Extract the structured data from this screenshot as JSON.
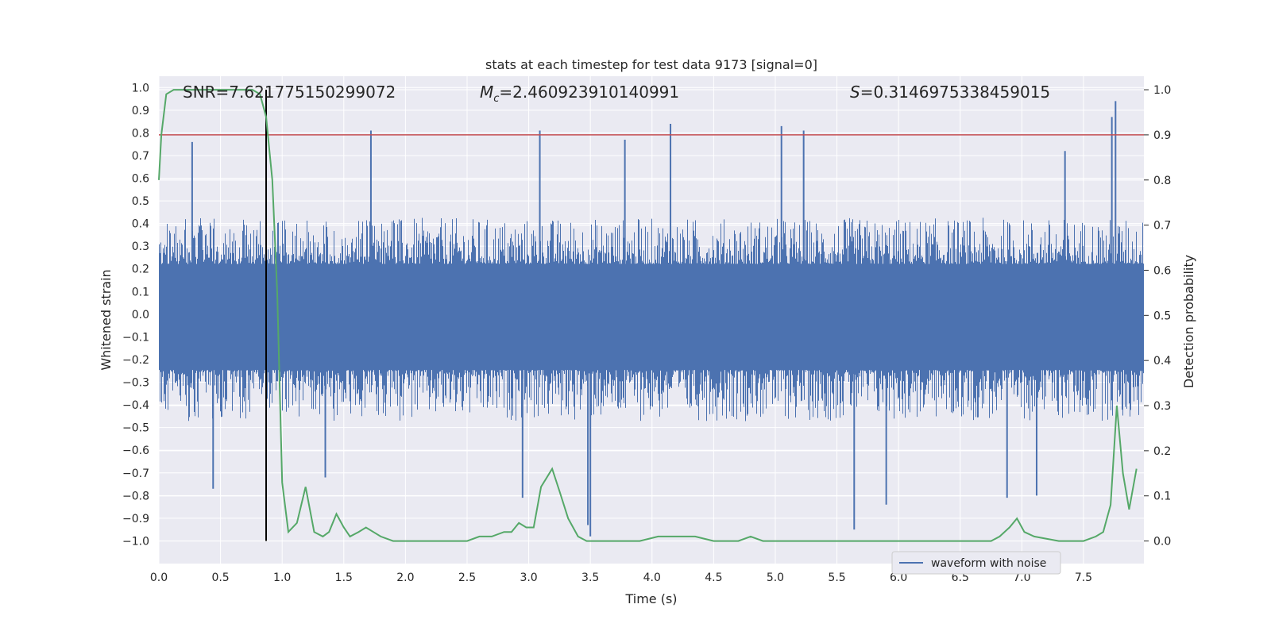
{
  "chart_data": {
    "type": "line",
    "title": "stats at each timestep for test data 9173 [signal=0]",
    "xlabel": "Time (s)",
    "ylabel": "Whitened strain",
    "y2label": "Detection probability",
    "xlim": [
      0,
      7.99
    ],
    "ylim": [
      -1.1,
      1.05
    ],
    "y2lim": [
      -0.05,
      1.03
    ],
    "xticks": [
      "0.0",
      "0.5",
      "1.0",
      "1.5",
      "2.0",
      "2.5",
      "3.0",
      "3.5",
      "4.0",
      "4.5",
      "5.0",
      "5.5",
      "6.0",
      "6.5",
      "7.0",
      "7.5"
    ],
    "yticks": [
      "1.0",
      "0.9",
      "0.8",
      "0.7",
      "0.6",
      "0.5",
      "0.4",
      "0.3",
      "0.2",
      "0.1",
      "0.0",
      "−0.1",
      "−0.2",
      "−0.3",
      "−0.4",
      "−0.5",
      "−0.6",
      "−0.7",
      "−0.8",
      "−0.9",
      "−1.0"
    ],
    "y2ticks": [
      "1.0",
      "0.9",
      "0.8",
      "0.7",
      "0.6",
      "0.5",
      "0.4",
      "0.3",
      "0.2",
      "0.1",
      "0.0"
    ],
    "annotations": {
      "snr": "SNR=7.621775150299072",
      "mc_symbol": "M",
      "mc_sub": "c",
      "mc_value": "=2.460923910140991",
      "s_symbol": "S",
      "s_value": "=0.3146975338459015"
    },
    "threshold_y2": 0.9,
    "marker_x": 0.87,
    "legend": "waveform with noise",
    "grid": true,
    "legend_position": "lower-right",
    "colors": {
      "background": "#eaeaf2",
      "grid": "#ffffff",
      "waveform": "#4c72b0",
      "probability": "#55a868",
      "threshold": "#c44e52",
      "marker": "#000000"
    },
    "waveform_envelope": {
      "upper_typical": 0.37,
      "lower_typical": -0.41,
      "peaks": [
        {
          "x": 0.27,
          "y": 0.76
        },
        {
          "x": 0.87,
          "y": 0.85
        },
        {
          "x": 1.72,
          "y": 0.81
        },
        {
          "x": 3.09,
          "y": 0.81
        },
        {
          "x": 3.78,
          "y": 0.77
        },
        {
          "x": 4.15,
          "y": 0.84
        },
        {
          "x": 5.05,
          "y": 0.83
        },
        {
          "x": 5.23,
          "y": 0.81
        },
        {
          "x": 7.35,
          "y": 0.72
        },
        {
          "x": 7.76,
          "y": 0.94
        },
        {
          "x": 7.73,
          "y": 0.87
        }
      ],
      "troughs": [
        {
          "x": 0.44,
          "y": -0.77
        },
        {
          "x": 1.35,
          "y": -0.72
        },
        {
          "x": 3.5,
          "y": -0.98
        },
        {
          "x": 3.48,
          "y": -0.93
        },
        {
          "x": 5.64,
          "y": -0.95
        },
        {
          "x": 5.9,
          "y": -0.84
        },
        {
          "x": 6.88,
          "y": -0.81
        },
        {
          "x": 7.12,
          "y": -0.8
        },
        {
          "x": 2.95,
          "y": -0.81
        }
      ]
    },
    "series": [
      {
        "values_x": [
          0.0,
          0.02,
          0.06,
          0.12,
          0.25,
          0.4,
          0.55,
          0.7,
          0.76,
          0.82,
          0.87,
          0.92,
          0.96,
          1.0,
          1.05,
          1.12,
          1.19,
          1.26,
          1.33,
          1.38,
          1.44,
          1.5,
          1.55,
          1.62,
          1.68,
          1.74,
          1.8,
          1.9,
          2.1,
          2.3,
          2.4,
          2.5,
          2.6,
          2.7,
          2.8,
          2.86,
          2.92,
          2.98,
          3.04,
          3.1,
          3.19,
          3.25,
          3.32,
          3.4,
          3.47,
          3.55,
          3.7,
          3.9,
          4.05,
          4.2,
          4.35,
          4.5,
          4.7,
          4.8,
          4.9,
          5.1,
          5.3,
          5.5,
          5.8,
          6.0,
          6.3,
          6.6,
          6.75,
          6.82,
          6.9,
          6.96,
          7.02,
          7.1,
          7.3,
          7.5,
          7.6,
          7.66,
          7.72,
          7.77,
          7.82,
          7.87,
          7.93
        ],
        "values": [
          0.8,
          0.9,
          0.99,
          1.0,
          1.0,
          1.0,
          1.0,
          1.0,
          1.0,
          0.99,
          0.94,
          0.8,
          0.55,
          0.13,
          0.02,
          0.04,
          0.12,
          0.02,
          0.01,
          0.02,
          0.06,
          0.03,
          0.01,
          0.02,
          0.03,
          0.02,
          0.01,
          0.0,
          0.0,
          0.0,
          0.0,
          0.0,
          0.01,
          0.01,
          0.02,
          0.02,
          0.04,
          0.03,
          0.03,
          0.12,
          0.16,
          0.11,
          0.05,
          0.01,
          0.0,
          0.0,
          0.0,
          0.0,
          0.01,
          0.01,
          0.01,
          0.0,
          0.0,
          0.01,
          0.0,
          0.0,
          0.0,
          0.0,
          0.0,
          0.0,
          0.0,
          0.0,
          0.0,
          0.01,
          0.03,
          0.05,
          0.02,
          0.01,
          0.0,
          0.0,
          0.01,
          0.02,
          0.08,
          0.3,
          0.15,
          0.07,
          0.16
        ]
      }
    ]
  }
}
